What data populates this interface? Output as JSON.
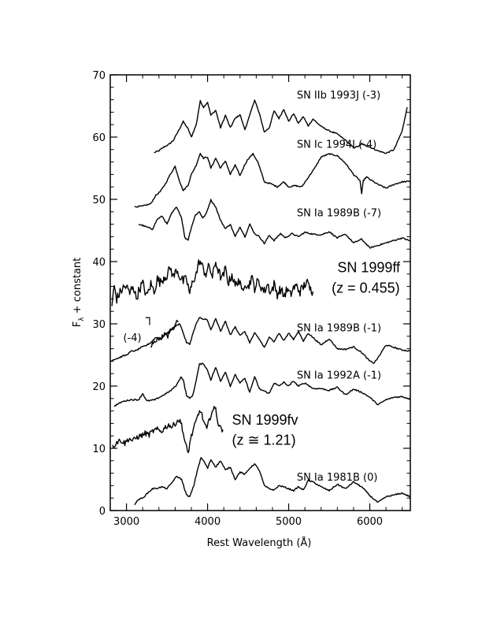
{
  "chart_data": {
    "type": "line",
    "xlabel": "Rest Wavelength (Å)",
    "ylabel": "F + constant",
    "ylabel_subscript": "λ",
    "xlim": [
      2800,
      6500
    ],
    "ylim": [
      0,
      70
    ],
    "xticks": [
      "3000",
      "4000",
      "5000",
      "6000"
    ],
    "yticks": [
      "0",
      "10",
      "20",
      "30",
      "40",
      "50",
      "60",
      "70"
    ],
    "xtick_values": [
      3000,
      4000,
      5000,
      6000
    ],
    "ytick_values": [
      0,
      10,
      20,
      30,
      40,
      50,
      60,
      70
    ],
    "annotations": [
      {
        "text": "SN IIb 1993J (-3)",
        "x": 5100,
        "y": 66.2,
        "style": "small"
      },
      {
        "text": "SN Ic 1994I (-4)",
        "x": 5100,
        "y": 58.3,
        "style": "small"
      },
      {
        "text": "SN Ia 1989B (-7)",
        "x": 5100,
        "y": 47.3,
        "style": "small"
      },
      {
        "text": "SN 1999ff",
        "x": 5600,
        "y": 38.3,
        "style": "big"
      },
      {
        "text": "(z = 0.455)",
        "x": 5530,
        "y": 35.0,
        "style": "big"
      },
      {
        "text": "(-4)",
        "x": 2960,
        "y": 27.2,
        "style": "small"
      },
      {
        "text": "SN Ia 1989B (-1)",
        "x": 5100,
        "y": 28.8,
        "style": "small"
      },
      {
        "text": "SN Ia 1992A (-1)",
        "x": 5100,
        "y": 21.2,
        "style": "small"
      },
      {
        "text": "SN 1999fv",
        "x": 4300,
        "y": 13.8,
        "style": "big"
      },
      {
        "text": "(z ≅ 1.21)",
        "x": 4300,
        "y": 10.6,
        "style": "big"
      },
      {
        "text": "SN Ia 1981B (0)",
        "x": 5100,
        "y": 4.8,
        "style": "small"
      }
    ],
    "series": [
      {
        "noise": 0.1,
        "x": [
          3340,
          3400,
          3460,
          3520,
          3580,
          3640,
          3700,
          3760,
          3800,
          3860,
          3910,
          3950,
          4000,
          4040,
          4100,
          4160,
          4220,
          4280,
          4340,
          4400,
          4460,
          4520,
          4580,
          4640,
          4700,
          4760,
          4820,
          4880,
          4940,
          5000,
          5060,
          5120,
          5180,
          5240,
          5300,
          5400,
          5500,
          5600,
          5700,
          5800,
          5880,
          5900,
          5920,
          6000,
          6100,
          6200,
          6300,
          6400,
          6460
        ],
        "y": [
          57.5,
          57.8,
          58.4,
          58.8,
          59.5,
          61.0,
          62.5,
          61.3,
          60.0,
          62.0,
          65.8,
          64.8,
          65.6,
          63.5,
          64.3,
          61.5,
          63.5,
          61.5,
          63.0,
          63.6,
          61.2,
          63.5,
          66.0,
          63.7,
          60.8,
          61.5,
          64.2,
          63.0,
          64.5,
          62.5,
          63.8,
          62.2,
          63.3,
          61.8,
          62.9,
          61.7,
          61.0,
          60.5,
          59.5,
          58.3,
          58.6,
          59.0,
          58.8,
          58.4,
          57.8,
          57.4,
          58.0,
          61.0,
          64.8
        ]
      },
      {
        "noise": 0.1,
        "x": [
          3100,
          3200,
          3300,
          3360,
          3420,
          3480,
          3540,
          3600,
          3660,
          3700,
          3760,
          3800,
          3860,
          3910,
          3950,
          4000,
          4040,
          4100,
          4160,
          4220,
          4280,
          4340,
          4400,
          4460,
          4500,
          4560,
          4620,
          4700,
          4780,
          4860,
          4940,
          5000,
          5080,
          5160,
          5240,
          5320,
          5400,
          5500,
          5600,
          5700,
          5800,
          5880,
          5900,
          5920,
          5960,
          6000,
          6100,
          6200,
          6300,
          6400,
          6500
        ],
        "y": [
          48.8,
          48.9,
          49.3,
          50.6,
          51.3,
          52.5,
          54.0,
          55.3,
          52.7,
          51.4,
          52.3,
          54.0,
          55.5,
          57.4,
          56.6,
          56.8,
          55.0,
          56.6,
          55.0,
          56.2,
          54.0,
          55.5,
          53.8,
          55.6,
          56.5,
          57.3,
          56.0,
          52.8,
          52.5,
          52.0,
          52.8,
          52.0,
          52.2,
          52.0,
          53.5,
          55.0,
          56.8,
          57.3,
          57.0,
          55.8,
          54.0,
          53.0,
          50.8,
          53.0,
          53.6,
          53.2,
          52.4,
          51.8,
          52.4,
          52.8,
          52.9
        ]
      },
      {
        "noise": 0.1,
        "x": [
          3150,
          3200,
          3260,
          3320,
          3380,
          3440,
          3500,
          3560,
          3620,
          3680,
          3720,
          3760,
          3800,
          3850,
          3900,
          3940,
          3980,
          4040,
          4100,
          4160,
          4220,
          4280,
          4340,
          4400,
          4460,
          4520,
          4580,
          4640,
          4700,
          4760,
          4820,
          4900,
          4960,
          5040,
          5120,
          5200,
          5300,
          5400,
          5500,
          5600,
          5700,
          5800,
          5900,
          6000,
          6100,
          6200,
          6300,
          6400,
          6500
        ],
        "y": [
          46.0,
          45.8,
          45.5,
          45.2,
          46.8,
          47.3,
          46.0,
          47.8,
          48.8,
          47.0,
          43.8,
          43.5,
          45.5,
          47.5,
          48.0,
          47.0,
          47.6,
          49.9,
          48.8,
          46.6,
          45.3,
          46.0,
          44.0,
          45.6,
          44.0,
          46.0,
          44.5,
          44.0,
          42.9,
          44.2,
          43.4,
          44.5,
          43.8,
          44.5,
          44.0,
          44.7,
          44.4,
          44.3,
          44.8,
          43.8,
          44.4,
          43.0,
          43.6,
          42.2,
          42.6,
          43.0,
          43.4,
          43.8,
          43.3
        ]
      },
      {
        "noise": 0.8,
        "x": [
          2820,
          2850,
          2880,
          2920,
          2960,
          3000,
          3040,
          3080,
          3120,
          3160,
          3200,
          3250,
          3300,
          3340,
          3380,
          3420,
          3460,
          3500,
          3540,
          3580,
          3620,
          3660,
          3700,
          3740,
          3780,
          3820,
          3860,
          3900,
          3940,
          3980,
          4020,
          4060,
          4100,
          4140,
          4180,
          4220,
          4260,
          4300,
          4340,
          4380,
          4420,
          4460,
          4500,
          4540,
          4580,
          4620,
          4660,
          4700,
          4740,
          4780,
          4820,
          4860,
          4900,
          4940,
          4980,
          5020,
          5060,
          5100,
          5140,
          5180,
          5220,
          5260,
          5300
        ],
        "y": [
          33.0,
          36.0,
          34.0,
          35.0,
          35.8,
          36.0,
          34.8,
          36.3,
          34.0,
          35.6,
          36.5,
          34.4,
          36.4,
          35.2,
          37.2,
          36.6,
          37.5,
          37.8,
          39.0,
          37.5,
          38.8,
          37.5,
          36.8,
          37.2,
          34.8,
          37.0,
          38.0,
          40.2,
          39.0,
          38.0,
          39.3,
          37.5,
          40.0,
          38.2,
          37.2,
          38.8,
          36.5,
          38.0,
          36.0,
          37.2,
          35.2,
          36.8,
          35.8,
          37.5,
          35.8,
          36.8,
          36.0,
          35.2,
          36.4,
          35.0,
          36.3,
          34.8,
          35.6,
          34.5,
          35.5,
          34.6,
          35.8,
          36.0,
          35.2,
          35.9,
          36.8,
          35.6,
          35.2
        ]
      },
      {
        "noise": 0.35,
        "x": [
          3300,
          3340,
          3380,
          3420,
          3450,
          3480,
          3510,
          3540,
          3560,
          3580,
          3600,
          3620,
          3640
        ],
        "y": [
          26.5,
          27.2,
          27.6,
          27.5,
          28.3,
          28.6,
          28.0,
          29.2,
          29.4,
          28.8,
          29.8,
          30.6,
          30.3
        ]
      },
      {
        "noise": 0.1,
        "x": [
          2800,
          2850,
          2900,
          2950,
          3000,
          3060,
          3120,
          3180,
          3240,
          3300,
          3360,
          3420,
          3480,
          3540,
          3600,
          3660,
          3700,
          3740,
          3780,
          3820,
          3860,
          3900,
          3940,
          3990,
          4040,
          4100,
          4160,
          4220,
          4280,
          4340,
          4400,
          4460,
          4520,
          4580,
          4640,
          4700,
          4760,
          4820,
          4880,
          4940,
          5000,
          5060,
          5120,
          5180,
          5240,
          5300,
          5400,
          5500,
          5600,
          5700,
          5800,
          5900,
          6000,
          6050,
          6100,
          6200,
          6300,
          6400,
          6500
        ],
        "y": [
          24.0,
          24.3,
          24.5,
          24.8,
          25.0,
          25.6,
          25.7,
          26.2,
          26.5,
          27.0,
          27.8,
          27.5,
          28.3,
          28.9,
          29.6,
          30.0,
          28.5,
          27.0,
          26.7,
          28.5,
          30.0,
          31.0,
          30.7,
          30.8,
          29.0,
          30.8,
          28.8,
          30.4,
          28.2,
          29.5,
          28.2,
          28.7,
          27.0,
          28.5,
          27.5,
          26.2,
          27.8,
          27.2,
          28.5,
          27.3,
          28.5,
          27.5,
          28.8,
          27.2,
          28.5,
          27.8,
          26.6,
          27.6,
          26.0,
          25.9,
          26.3,
          25.4,
          24.0,
          23.7,
          24.5,
          26.6,
          26.2,
          25.8,
          25.6
        ]
      },
      {
        "noise": 0.1,
        "x": [
          2850,
          2950,
          3050,
          3150,
          3200,
          3250,
          3350,
          3450,
          3550,
          3620,
          3670,
          3700,
          3740,
          3780,
          3820,
          3860,
          3900,
          3950,
          4000,
          4040,
          4100,
          4160,
          4220,
          4280,
          4340,
          4400,
          4460,
          4520,
          4580,
          4640,
          4700,
          4760,
          4820,
          4880,
          4940,
          5000,
          5060,
          5120,
          5200,
          5300,
          5400,
          5500,
          5600,
          5700,
          5800,
          5900,
          6000,
          6100,
          6200,
          6300,
          6400,
          6500
        ],
        "y": [
          16.8,
          17.5,
          17.8,
          17.8,
          18.8,
          17.6,
          17.8,
          18.5,
          19.3,
          20.2,
          21.5,
          21.0,
          18.5,
          18.0,
          18.6,
          21.0,
          23.5,
          23.6,
          22.5,
          21.0,
          23.0,
          20.8,
          22.3,
          20.0,
          21.8,
          20.5,
          21.2,
          19.0,
          21.5,
          19.5,
          19.2,
          18.8,
          20.5,
          20.0,
          20.6,
          20.0,
          20.8,
          20.0,
          20.5,
          19.6,
          19.6,
          19.3,
          19.8,
          18.6,
          19.5,
          19.0,
          18.2,
          17.0,
          17.8,
          18.2,
          18.3,
          17.9
        ]
      },
      {
        "noise": 0.45,
        "x": [
          2830,
          2880,
          2930,
          2980,
          3030,
          3080,
          3130,
          3180,
          3230,
          3280,
          3330,
          3380,
          3430,
          3480,
          3530,
          3560,
          3600,
          3640,
          3680,
          3720,
          3760,
          3790,
          3820,
          3850,
          3880,
          3910,
          3950,
          3990,
          4020,
          4050,
          4080,
          4100,
          4130,
          4160,
          4190
        ],
        "y": [
          10.2,
          11.0,
          11.3,
          10.8,
          11.6,
          11.2,
          11.8,
          12.0,
          12.4,
          12.2,
          12.8,
          13.0,
          12.7,
          13.4,
          13.8,
          13.4,
          14.0,
          14.6,
          13.9,
          11.0,
          9.2,
          11.5,
          12.8,
          14.0,
          15.2,
          16.2,
          14.4,
          13.0,
          14.5,
          15.8,
          16.3,
          16.4,
          14.0,
          13.2,
          13.0
        ]
      },
      {
        "noise": 0.1,
        "x": [
          3100,
          3150,
          3200,
          3260,
          3320,
          3380,
          3440,
          3500,
          3560,
          3620,
          3680,
          3740,
          3780,
          3830,
          3880,
          3920,
          3960,
          4000,
          4040,
          4100,
          4160,
          4220,
          4280,
          4340,
          4400,
          4460,
          4520,
          4580,
          4640,
          4700,
          4760,
          4820,
          4880,
          4940,
          5000,
          5060,
          5120,
          5180,
          5240,
          5300,
          5400,
          5500,
          5600,
          5700,
          5800,
          5900,
          5960,
          6000,
          6100,
          6200,
          6300,
          6400,
          6500
        ],
        "y": [
          1.0,
          1.8,
          2.0,
          2.8,
          3.5,
          3.6,
          3.8,
          3.5,
          4.5,
          5.5,
          5.0,
          2.5,
          2.2,
          4.0,
          6.8,
          8.5,
          7.8,
          6.8,
          8.2,
          7.0,
          8.0,
          6.5,
          7.0,
          5.0,
          6.2,
          5.8,
          6.8,
          7.5,
          6.4,
          4.0,
          3.5,
          3.3,
          4.0,
          3.8,
          3.5,
          3.2,
          3.8,
          3.3,
          4.8,
          4.6,
          3.8,
          3.2,
          4.2,
          3.5,
          4.6,
          3.8,
          3.0,
          2.4,
          1.3,
          2.2,
          2.5,
          2.8,
          2.2
        ]
      }
    ]
  }
}
